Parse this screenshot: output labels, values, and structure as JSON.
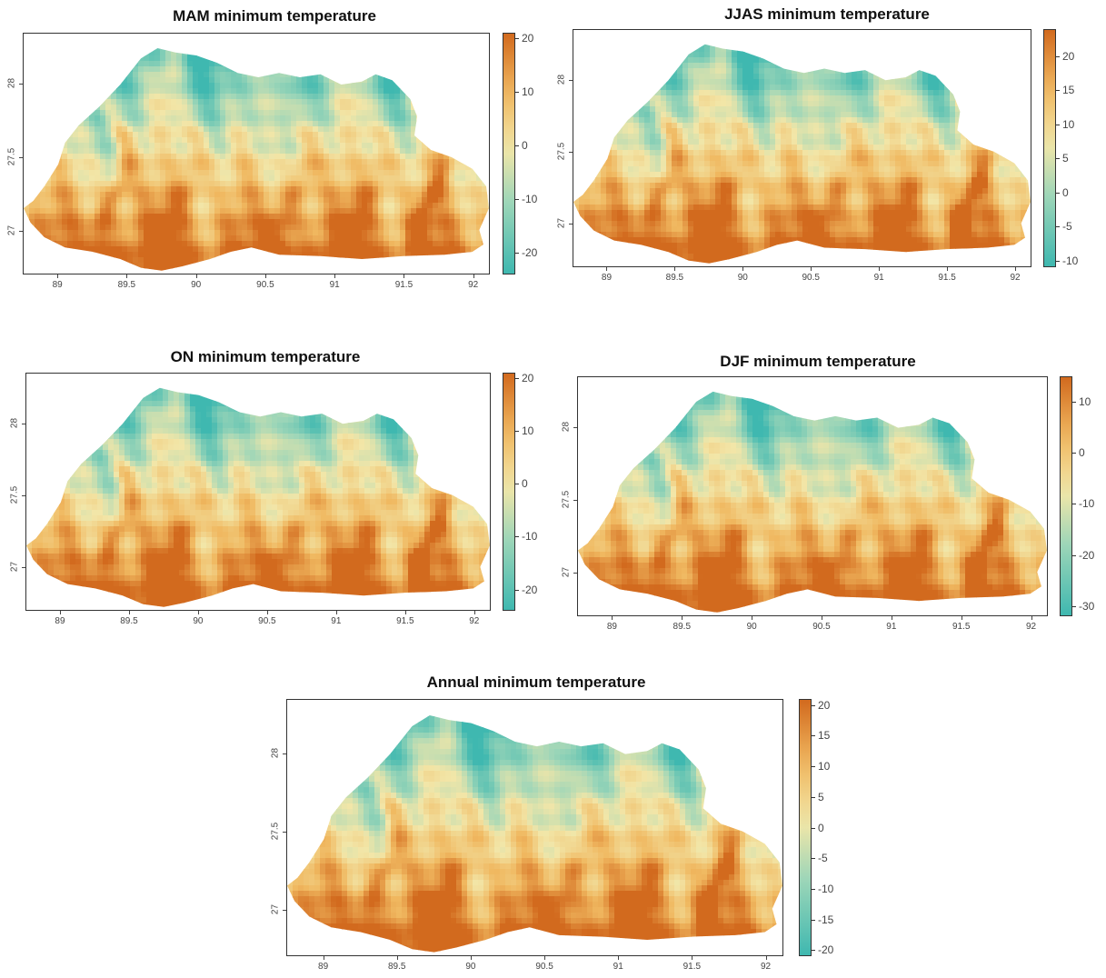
{
  "panels": [
    {
      "id": "mam",
      "title": "MAM minimum temperature",
      "x_ticks": [
        "89",
        "89.5",
        "90",
        "90.5",
        "91",
        "91.5",
        "92"
      ],
      "y_ticks": [
        "27",
        "27.5",
        "28"
      ],
      "colorbar": {
        "min": -24,
        "max": 21,
        "ticks": [
          "20",
          "10",
          "0",
          "-10",
          "-20"
        ],
        "tick_values": [
          20,
          10,
          0,
          -10,
          -20
        ]
      }
    },
    {
      "id": "jjas",
      "title": "JJAS minimum temperature",
      "x_ticks": [
        "89",
        "89.5",
        "90",
        "90.5",
        "91",
        "91.5",
        "92"
      ],
      "y_ticks": [
        "27",
        "27.5",
        "28"
      ],
      "colorbar": {
        "min": -11,
        "max": 24,
        "ticks": [
          "20",
          "15",
          "10",
          "5",
          "0",
          "-5",
          "-10"
        ],
        "tick_values": [
          20,
          15,
          10,
          5,
          0,
          -5,
          -10
        ]
      }
    },
    {
      "id": "on",
      "title": "ON minimum temperature",
      "x_ticks": [
        "89",
        "89.5",
        "90",
        "90.5",
        "91",
        "91.5",
        "92"
      ],
      "y_ticks": [
        "27",
        "27.5",
        "28"
      ],
      "colorbar": {
        "min": -24,
        "max": 21,
        "ticks": [
          "20",
          "10",
          "0",
          "-10",
          "-20"
        ],
        "tick_values": [
          20,
          10,
          0,
          -10,
          -20
        ]
      }
    },
    {
      "id": "djf",
      "title": "DJF minimum temperature",
      "x_ticks": [
        "89",
        "89.5",
        "90",
        "90.5",
        "91",
        "91.5",
        "92"
      ],
      "y_ticks": [
        "27",
        "27.5",
        "28"
      ],
      "colorbar": {
        "min": -32,
        "max": 15,
        "ticks": [
          "10",
          "0",
          "-10",
          "-20",
          "-30"
        ],
        "tick_values": [
          10,
          0,
          -10,
          -20,
          -30
        ]
      }
    },
    {
      "id": "annual",
      "title": "Annual minimum temperature",
      "x_ticks": [
        "89",
        "89.5",
        "90",
        "90.5",
        "91",
        "91.5",
        "92"
      ],
      "y_ticks": [
        "27",
        "27.5",
        "28"
      ],
      "colorbar": {
        "min": -21,
        "max": 21,
        "ticks": [
          "20",
          "15",
          "10",
          "5",
          "0",
          "-5",
          "-10",
          "-15",
          "-20"
        ],
        "tick_values": [
          20,
          15,
          10,
          5,
          0,
          -5,
          -10,
          -15,
          -20
        ]
      }
    }
  ],
  "map_extent": {
    "lon_min": 88.75,
    "lon_max": 92.12,
    "lat_min": 26.7,
    "lat_max": 28.35
  },
  "colors": {
    "cold": "#3fb8b0",
    "mid_cold": "#9ed6b8",
    "neutral": "#f2e6a8",
    "warm": "#f0b860",
    "hot": "#d26a1e"
  }
}
